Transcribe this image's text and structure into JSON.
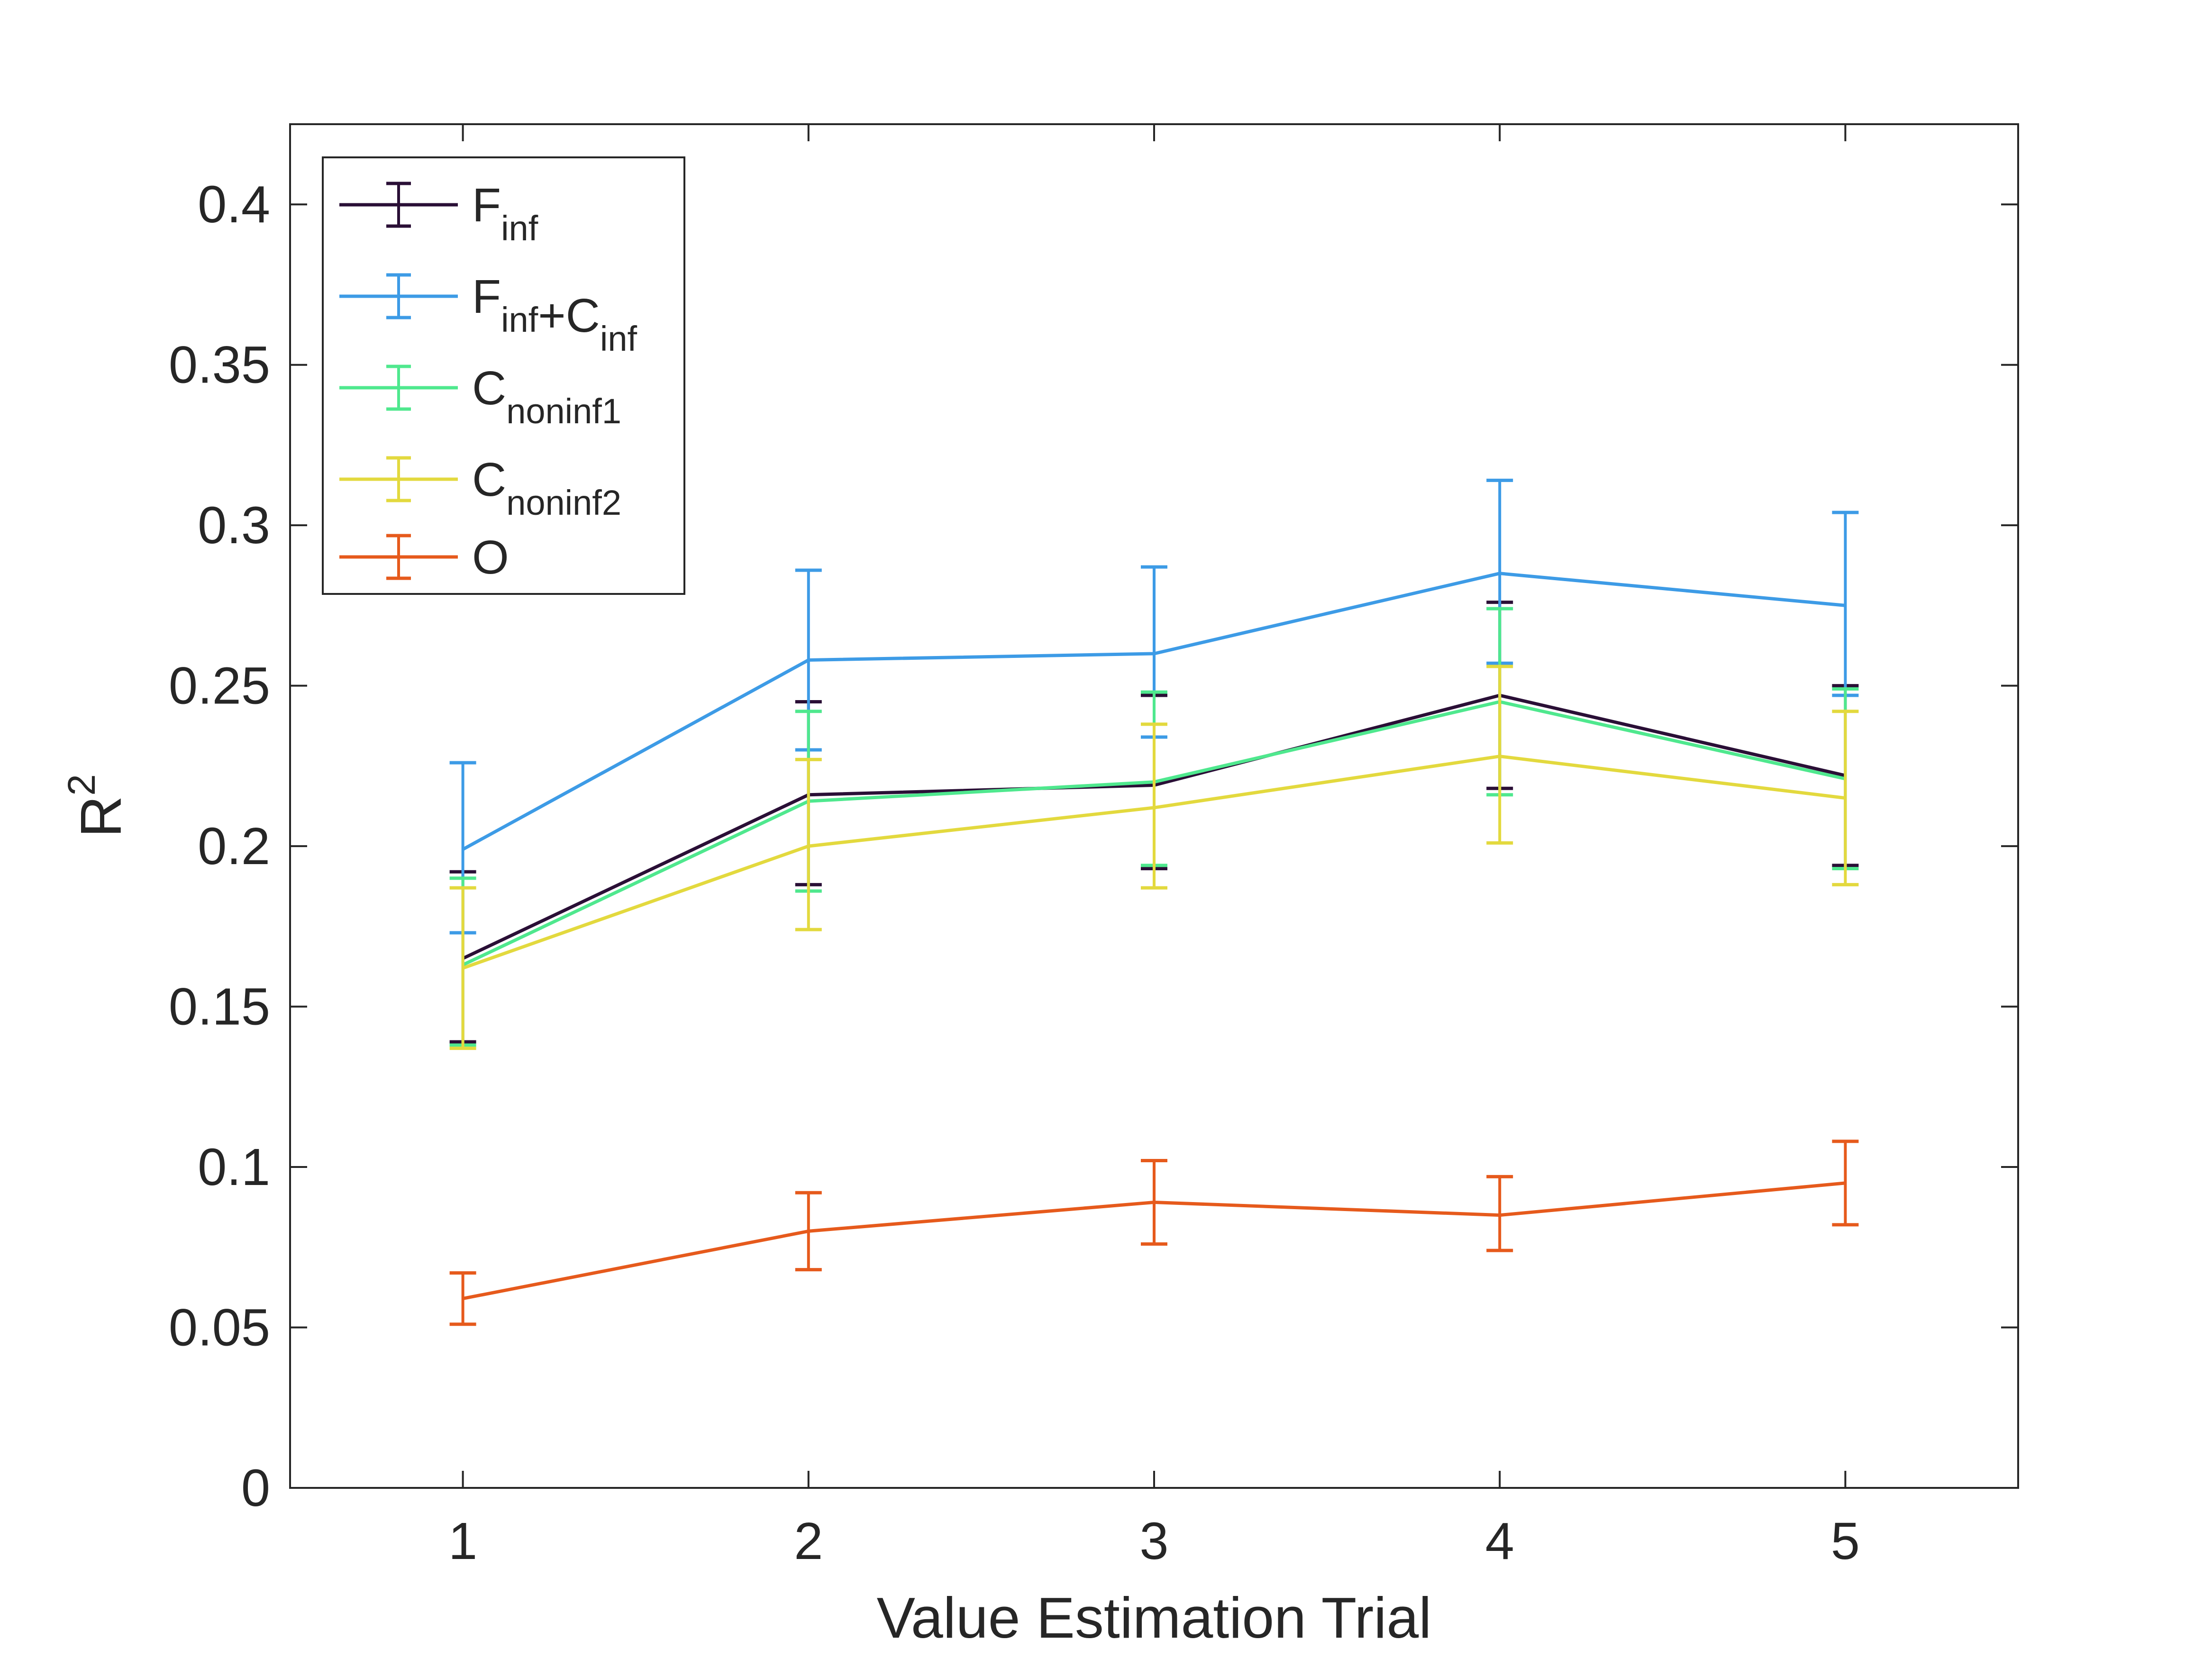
{
  "chart_data": {
    "type": "line",
    "xlabel": "Value Estimation Trial",
    "ylabel": {
      "base": "R",
      "sup": "2"
    },
    "x": [
      1,
      2,
      3,
      4,
      5
    ],
    "xlim": [
      0.5,
      5.5
    ],
    "ylim": [
      0,
      0.425
    ],
    "xticks": [
      "1",
      "2",
      "3",
      "4",
      "5"
    ],
    "yticks": [
      0,
      0.05,
      0.1,
      0.15,
      0.2,
      0.25,
      0.3,
      0.35,
      0.4
    ],
    "ytick_labels": [
      "0",
      "0.05",
      "0.1",
      "0.15",
      "0.2",
      "0.25",
      "0.3",
      "0.35",
      "0.4"
    ],
    "grid": false,
    "legend_position": "top-left",
    "error_bars": true,
    "series": [
      {
        "id": "finf",
        "name": "F_inf",
        "label_parts": [
          [
            "F",
            "inf"
          ]
        ],
        "color": "#2a0f36",
        "values": [
          0.165,
          0.216,
          0.219,
          0.247,
          0.222
        ],
        "lower": [
          0.139,
          0.188,
          0.193,
          0.218,
          0.194
        ],
        "upper": [
          0.192,
          0.245,
          0.247,
          0.276,
          0.25
        ]
      },
      {
        "id": "finf-cinf",
        "name": "F_inf+C_inf",
        "label_parts": [
          [
            "F",
            "inf"
          ],
          [
            "+C",
            "inf"
          ]
        ],
        "color": "#3d9be6",
        "values": [
          0.199,
          0.258,
          0.26,
          0.285,
          0.275
        ],
        "lower": [
          0.173,
          0.23,
          0.234,
          0.257,
          0.247
        ],
        "upper": [
          0.226,
          0.286,
          0.287,
          0.314,
          0.304
        ]
      },
      {
        "id": "cnoninf1",
        "name": "C_noninf1",
        "label_parts": [
          [
            "C",
            "noninf1"
          ]
        ],
        "color": "#4fe88e",
        "values": [
          0.163,
          0.214,
          0.22,
          0.245,
          0.221
        ],
        "lower": [
          0.138,
          0.186,
          0.194,
          0.216,
          0.193
        ],
        "upper": [
          0.19,
          0.242,
          0.248,
          0.274,
          0.249
        ]
      },
      {
        "id": "cnoninf2",
        "name": "C_noninf2",
        "label_parts": [
          [
            "C",
            "noninf2"
          ]
        ],
        "color": "#e3d93e",
        "values": [
          0.162,
          0.2,
          0.212,
          0.228,
          0.215
        ],
        "lower": [
          0.137,
          0.174,
          0.187,
          0.201,
          0.188
        ],
        "upper": [
          0.187,
          0.227,
          0.238,
          0.256,
          0.242
        ]
      },
      {
        "id": "o",
        "name": "O",
        "label_parts": [
          [
            "O",
            ""
          ]
        ],
        "color": "#e65a1c",
        "values": [
          0.059,
          0.08,
          0.089,
          0.085,
          0.095
        ],
        "lower": [
          0.051,
          0.068,
          0.076,
          0.074,
          0.082
        ],
        "upper": [
          0.067,
          0.092,
          0.102,
          0.097,
          0.108
        ]
      }
    ]
  }
}
